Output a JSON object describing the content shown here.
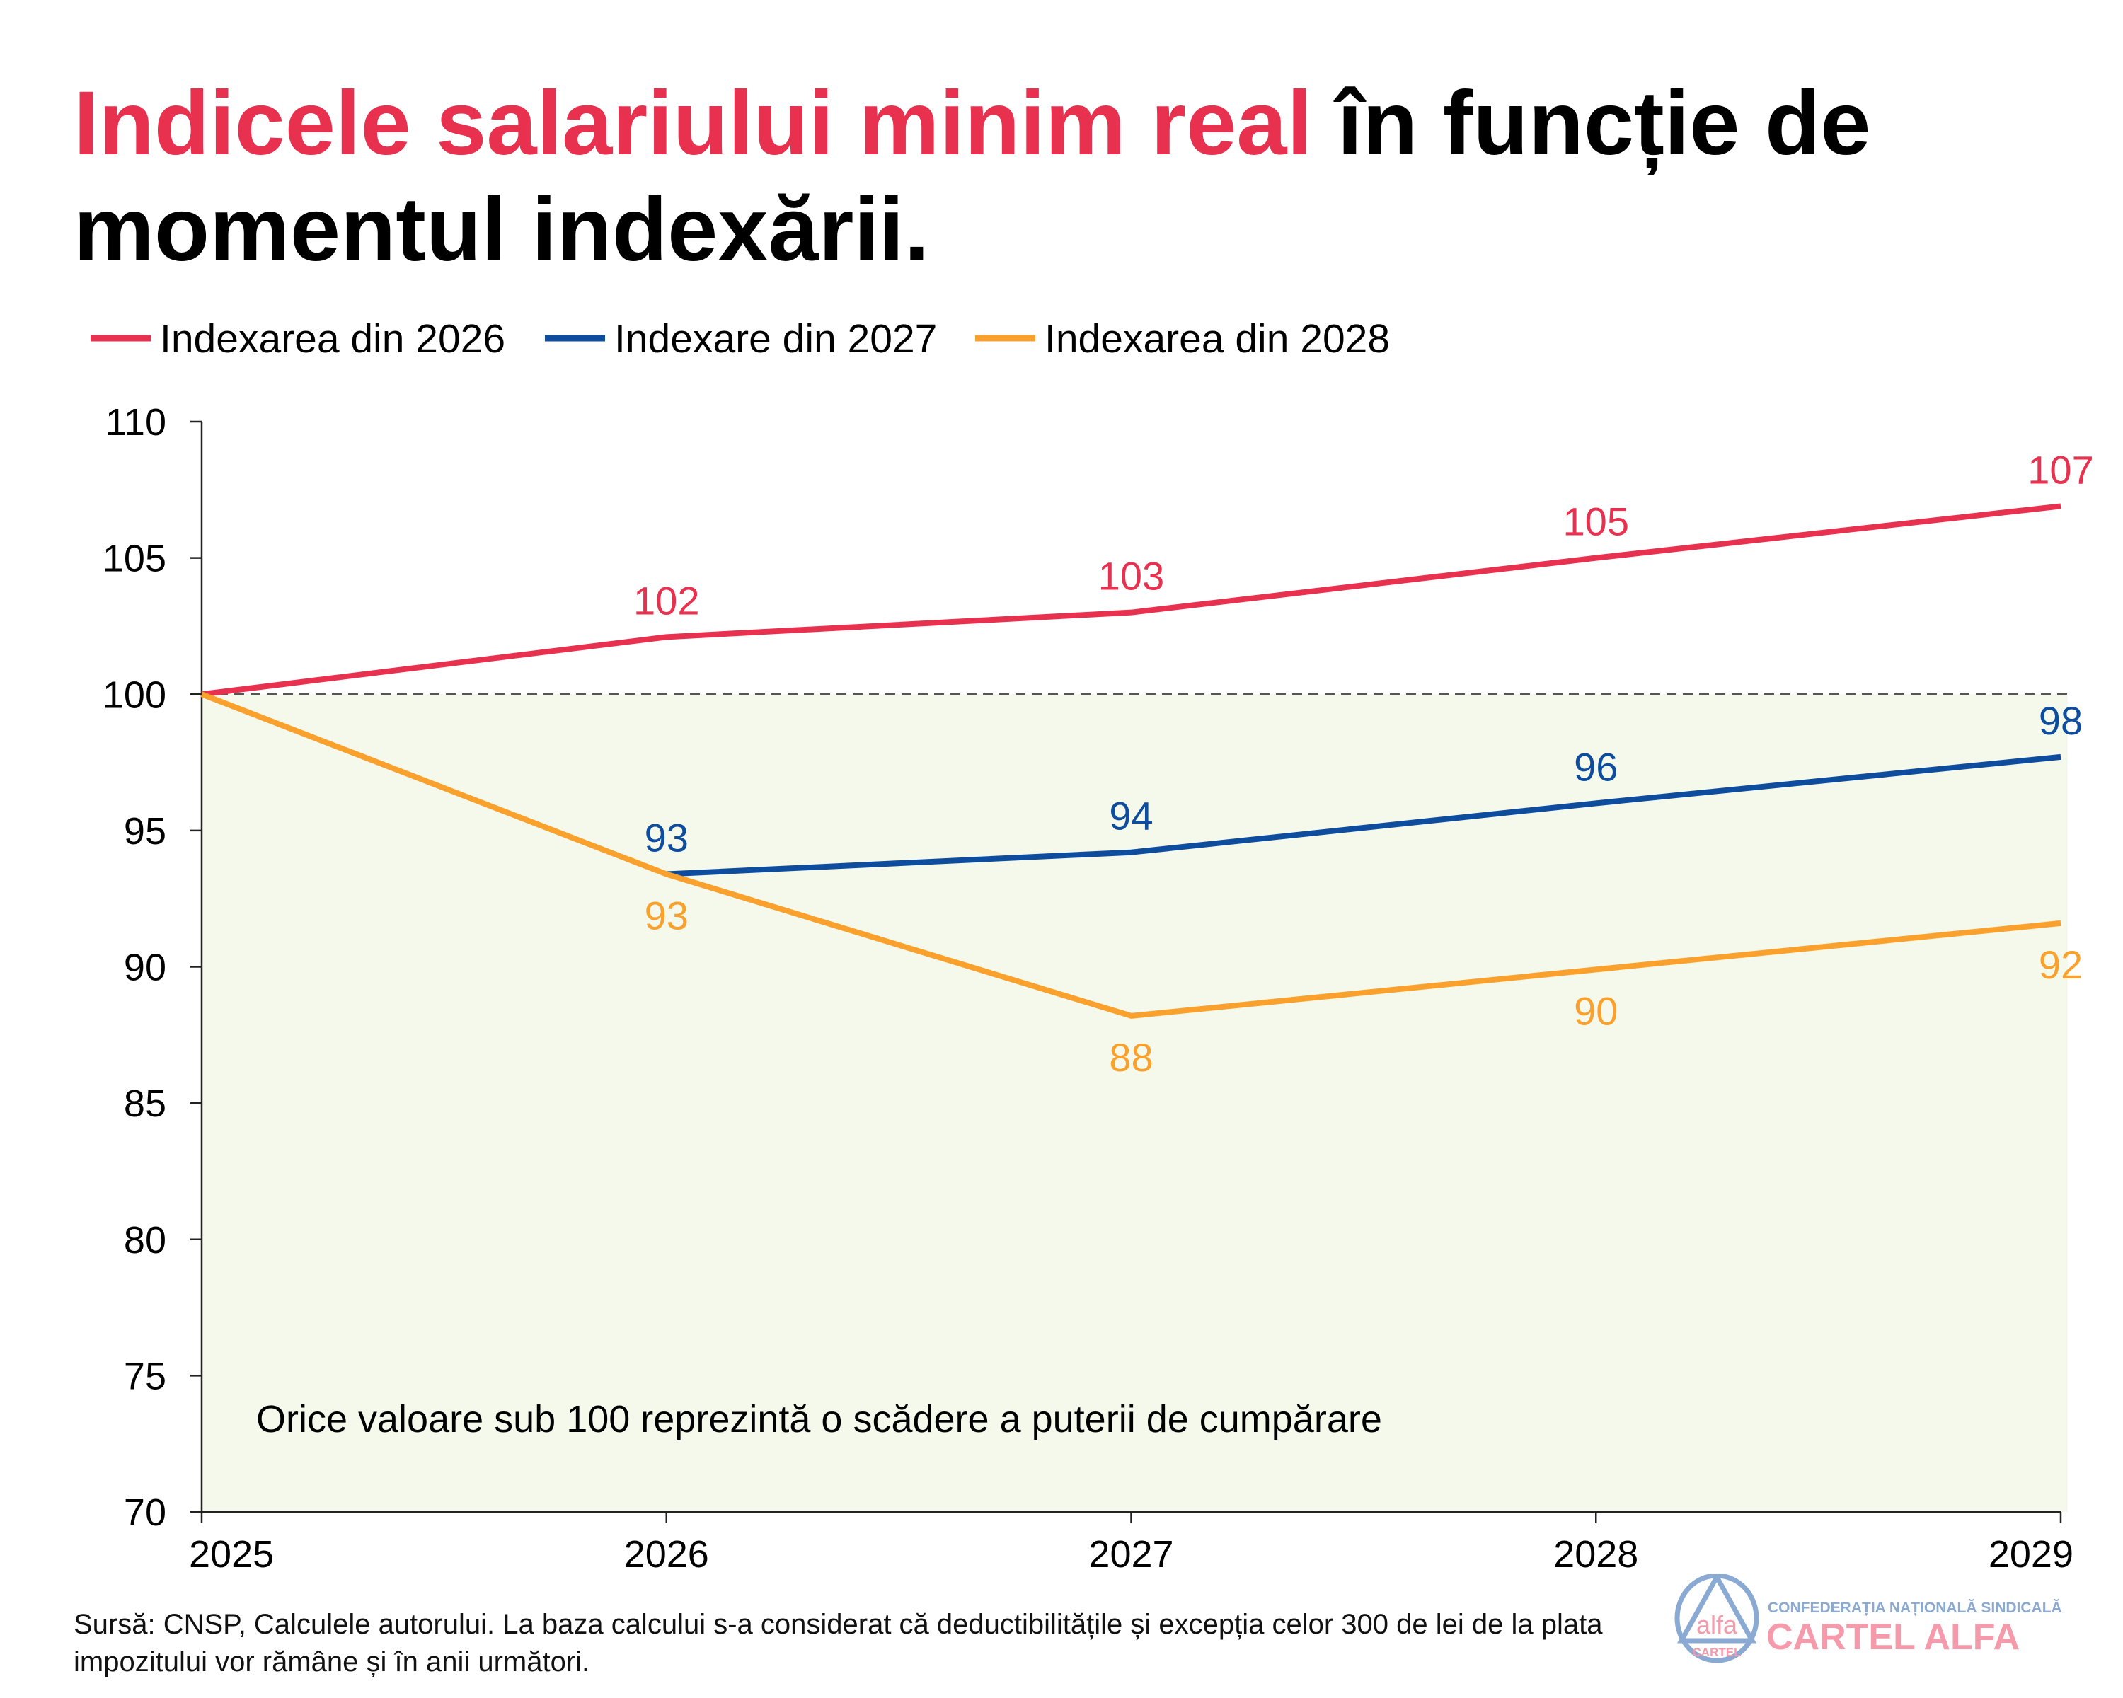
{
  "title": {
    "highlight": "Indicele salariului minim real",
    "rest": " în funcție de momentul indexării."
  },
  "footnote": "Sursă: CNSP, Calculele autorului. La baza calcului s-a considerat că deductibilitățile și excepția celor 300 de lei de la plata impozitului vor rămâne și în anii următori.",
  "logo": {
    "top": "CONFEDERAȚIA NAȚIONALĂ SINDICALĂ",
    "main": "CARTEL ALFA",
    "circle_top": "alfa",
    "circle_bottom": "CARTEL"
  },
  "chart_data": {
    "type": "line",
    "x": [
      2025,
      2026,
      2027,
      2028,
      2029
    ],
    "ylim": [
      70,
      110
    ],
    "yticks": [
      70,
      75,
      80,
      85,
      90,
      95,
      100,
      105,
      110
    ],
    "reference_line": 100,
    "shaded_region": [
      70,
      100
    ],
    "annotation": "Orice valoare sub 100 reprezintă o scădere a puterii de cumpărare",
    "legend_position": "top-left",
    "series": [
      {
        "name": "Indexarea din 2026",
        "color": "#e8304f",
        "values": [
          100,
          102.1,
          103,
          105,
          106.9
        ],
        "labels": [
          null,
          "102",
          "103",
          "105",
          "107"
        ],
        "label_pos": "above"
      },
      {
        "name": "Indexare din 2027",
        "color": "#0e4c9e",
        "values": [
          null,
          93.4,
          94.2,
          96,
          97.7
        ],
        "labels": [
          null,
          "93",
          "94",
          "96",
          "98"
        ],
        "label_pos": "above"
      },
      {
        "name": "Indexarea din 2028",
        "color": "#f9a12c",
        "values": [
          100,
          93.4,
          88.2,
          89.9,
          91.6
        ],
        "labels": [
          null,
          "93",
          "88",
          "90",
          "92"
        ],
        "label_pos": "below"
      }
    ]
  }
}
